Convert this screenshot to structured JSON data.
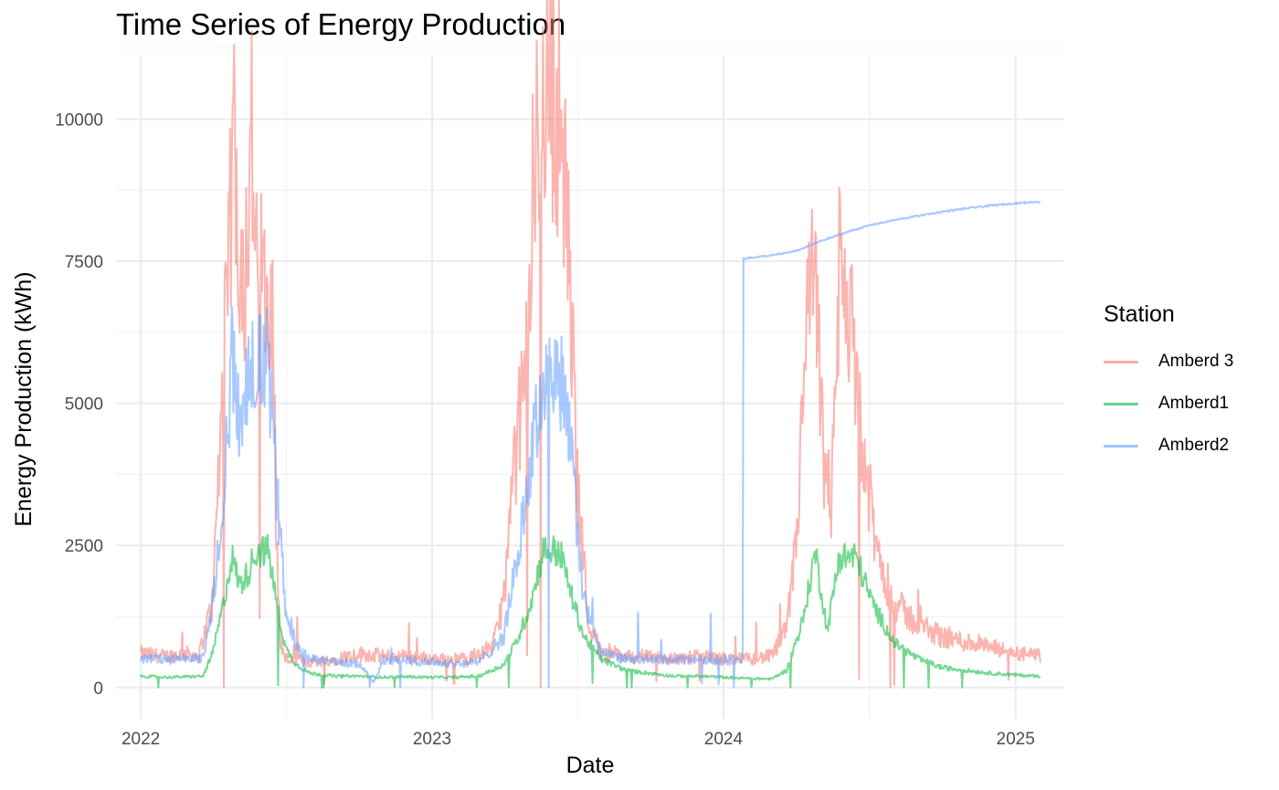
{
  "chart_data": {
    "type": "line",
    "title": "Time Series of Energy Production",
    "xlabel": "Date",
    "ylabel": "Energy Production (kWh)",
    "xlim": [
      "2021-12-01",
      "2025-03-03"
    ],
    "ylim": [
      -550,
      11100
    ],
    "x_ticks": [
      "2022",
      "2023",
      "2024",
      "2025"
    ],
    "x_tick_dates": [
      "2022-01-01",
      "2023-01-01",
      "2024-01-01",
      "2025-01-01"
    ],
    "y_ticks": [
      0,
      2500,
      5000,
      7500,
      10000
    ],
    "y_tick_labels": [
      "0",
      "2500",
      "5000",
      "7500",
      "10000"
    ],
    "grid": true,
    "legend": {
      "title": "Station",
      "position": "right"
    },
    "series": [
      {
        "name": "Amberd 3",
        "color": "#F8766D",
        "points": [
          [
            "2022-01-01",
            600
          ],
          [
            "2022-02-01",
            550
          ],
          [
            "2022-03-01",
            600
          ],
          [
            "2022-03-15",
            560
          ],
          [
            "2022-04-01",
            1500
          ],
          [
            "2022-04-10",
            4200
          ],
          [
            "2022-04-20",
            7000
          ],
          [
            "2022-04-28",
            9800
          ],
          [
            "2022-05-03",
            8200
          ],
          [
            "2022-05-10",
            6800
          ],
          [
            "2022-05-20",
            9900
          ],
          [
            "2022-05-25",
            7200
          ],
          [
            "2022-06-05",
            7200
          ],
          [
            "2022-06-15",
            7200
          ],
          [
            "2022-06-20",
            2500
          ],
          [
            "2022-06-25",
            800
          ],
          [
            "2022-07-01",
            500
          ],
          [
            "2022-08-01",
            450
          ],
          [
            "2022-09-01",
            500
          ],
          [
            "2022-10-01",
            600
          ],
          [
            "2022-11-01",
            550
          ],
          [
            "2022-12-01",
            550
          ],
          [
            "2023-01-01",
            500
          ],
          [
            "2023-02-01",
            500
          ],
          [
            "2023-03-01",
            550
          ],
          [
            "2023-03-20",
            800
          ],
          [
            "2023-04-01",
            1600
          ],
          [
            "2023-04-15",
            4000
          ],
          [
            "2023-05-01",
            6000
          ],
          [
            "2023-05-10",
            9200
          ],
          [
            "2023-05-20",
            10500
          ],
          [
            "2023-06-01",
            10500
          ],
          [
            "2023-06-10",
            10000
          ],
          [
            "2023-06-20",
            8000
          ],
          [
            "2023-07-01",
            4000
          ],
          [
            "2023-07-15",
            1200
          ],
          [
            "2023-08-01",
            600
          ],
          [
            "2023-09-01",
            550
          ],
          [
            "2023-10-01",
            550
          ],
          [
            "2023-11-01",
            500
          ],
          [
            "2023-12-01",
            550
          ],
          [
            "2024-01-01",
            500
          ],
          [
            "2024-02-01",
            500
          ],
          [
            "2024-03-01",
            550
          ],
          [
            "2024-03-20",
            1000
          ],
          [
            "2024-04-01",
            2500
          ],
          [
            "2024-04-15",
            6500
          ],
          [
            "2024-04-25",
            7200
          ],
          [
            "2024-05-05",
            4000
          ],
          [
            "2024-05-15",
            3000
          ],
          [
            "2024-05-25",
            7200
          ],
          [
            "2024-06-05",
            7000
          ],
          [
            "2024-06-15",
            5000
          ],
          [
            "2024-06-25",
            4000
          ],
          [
            "2024-07-10",
            2500
          ],
          [
            "2024-08-01",
            1500
          ],
          [
            "2024-09-01",
            1100
          ],
          [
            "2024-10-01",
            900
          ],
          [
            "2024-11-01",
            800
          ],
          [
            "2024-12-01",
            700
          ],
          [
            "2025-01-01",
            600
          ],
          [
            "2025-02-01",
            550
          ]
        ]
      },
      {
        "name": "Amberd1",
        "color": "#00BA38",
        "points": [
          [
            "2022-01-01",
            200
          ],
          [
            "2022-02-01",
            180
          ],
          [
            "2022-03-01",
            190
          ],
          [
            "2022-03-20",
            200
          ],
          [
            "2022-04-01",
            600
          ],
          [
            "2022-04-15",
            1500
          ],
          [
            "2022-04-25",
            2300
          ],
          [
            "2022-05-05",
            1800
          ],
          [
            "2022-05-15",
            2000
          ],
          [
            "2022-05-25",
            2400
          ],
          [
            "2022-06-10",
            2400
          ],
          [
            "2022-06-20",
            1500
          ],
          [
            "2022-07-01",
            700
          ],
          [
            "2022-07-15",
            400
          ],
          [
            "2022-08-01",
            250
          ],
          [
            "2022-09-01",
            200
          ],
          [
            "2022-10-01",
            200
          ],
          [
            "2022-11-01",
            180
          ],
          [
            "2022-12-01",
            190
          ],
          [
            "2023-01-01",
            180
          ],
          [
            "2023-02-01",
            180
          ],
          [
            "2023-03-01",
            200
          ],
          [
            "2023-04-01",
            400
          ],
          [
            "2023-04-20",
            900
          ],
          [
            "2023-05-05",
            1500
          ],
          [
            "2023-05-20",
            2400
          ],
          [
            "2023-06-10",
            2400
          ],
          [
            "2023-06-25",
            1600
          ],
          [
            "2023-07-10",
            900
          ],
          [
            "2023-08-01",
            500
          ],
          [
            "2023-09-01",
            300
          ],
          [
            "2023-10-01",
            250
          ],
          [
            "2023-11-01",
            200
          ],
          [
            "2023-12-01",
            200
          ],
          [
            "2024-01-01",
            180
          ],
          [
            "2024-02-01",
            160
          ],
          [
            "2024-03-01",
            150
          ],
          [
            "2024-03-20",
            300
          ],
          [
            "2024-04-10",
            1200
          ],
          [
            "2024-04-25",
            2400
          ],
          [
            "2024-05-10",
            1000
          ],
          [
            "2024-05-25",
            2300
          ],
          [
            "2024-06-15",
            2300
          ],
          [
            "2024-07-05",
            1500
          ],
          [
            "2024-08-01",
            800
          ],
          [
            "2024-09-01",
            500
          ],
          [
            "2024-10-01",
            350
          ],
          [
            "2024-11-01",
            300
          ],
          [
            "2024-12-01",
            250
          ],
          [
            "2025-01-01",
            220
          ],
          [
            "2025-02-01",
            200
          ]
        ]
      },
      {
        "name": "Amberd2",
        "color": "#619CFF",
        "points": [
          [
            "2022-01-01",
            500
          ],
          [
            "2022-02-01",
            500
          ],
          [
            "2022-03-01",
            500
          ],
          [
            "2022-03-20",
            520
          ],
          [
            "2022-04-01",
            1500
          ],
          [
            "2022-04-15",
            3500
          ],
          [
            "2022-04-25",
            5800
          ],
          [
            "2022-05-05",
            4500
          ],
          [
            "2022-05-15",
            5700
          ],
          [
            "2022-06-10",
            5700
          ],
          [
            "2022-06-20",
            3500
          ],
          [
            "2022-07-01",
            1500
          ],
          [
            "2022-07-15",
            700
          ],
          [
            "2022-08-01",
            500
          ],
          [
            "2022-09-01",
            450
          ],
          [
            "2022-10-01",
            420
          ],
          [
            "2022-10-20",
            100
          ],
          [
            "2022-11-01",
            480
          ],
          [
            "2022-12-01",
            480
          ],
          [
            "2023-01-01",
            450
          ],
          [
            "2023-02-01",
            420
          ],
          [
            "2023-03-01",
            450
          ],
          [
            "2023-04-01",
            900
          ],
          [
            "2023-04-20",
            2500
          ],
          [
            "2023-05-05",
            4000
          ],
          [
            "2023-05-20",
            5400
          ],
          [
            "2023-06-10",
            5550
          ],
          [
            "2023-06-25",
            4000
          ],
          [
            "2023-07-10",
            1500
          ],
          [
            "2023-08-01",
            600
          ],
          [
            "2023-09-01",
            500
          ],
          [
            "2023-10-01",
            500
          ],
          [
            "2023-11-01",
            480
          ],
          [
            "2023-12-01",
            500
          ],
          [
            "2024-01-01",
            480
          ],
          [
            "2024-01-25",
            500
          ],
          [
            "2024-01-26",
            7550
          ],
          [
            "2024-03-01",
            7600
          ],
          [
            "2024-04-01",
            7680
          ],
          [
            "2024-05-01",
            7850
          ],
          [
            "2024-06-01",
            8000
          ],
          [
            "2024-07-01",
            8130
          ],
          [
            "2024-08-01",
            8220
          ],
          [
            "2024-09-01",
            8300
          ],
          [
            "2024-10-01",
            8370
          ],
          [
            "2024-11-01",
            8430
          ],
          [
            "2024-12-01",
            8480
          ],
          [
            "2025-01-01",
            8520
          ],
          [
            "2025-02-01",
            8550
          ]
        ]
      }
    ]
  }
}
